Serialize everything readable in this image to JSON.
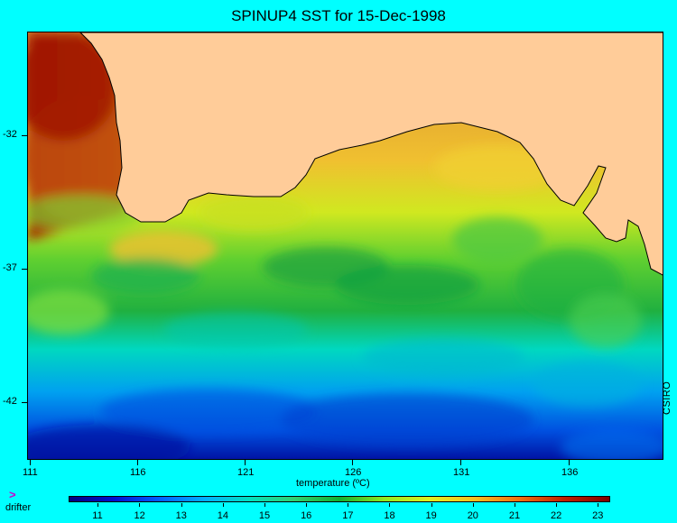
{
  "title": "SPINUP4 SST for 15-Dec-1998",
  "x_ticks": [
    "111",
    "116",
    "121",
    "126",
    "131",
    "136"
  ],
  "y_ticks": [
    "-32",
    "-37",
    "-42"
  ],
  "colorbar": {
    "title": "temperature (ºC)",
    "ticks": [
      "11",
      "12",
      "13",
      "14",
      "15",
      "16",
      "17",
      "18",
      "19",
      "20",
      "21",
      "22",
      "23"
    ],
    "min": 10.3,
    "max": 23.3,
    "colors": [
      "#00007f",
      "#0010d0",
      "#0060ff",
      "#00b0ff",
      "#00e0c0",
      "#30d070",
      "#10b030",
      "#90ea20",
      "#e0f020",
      "#f8c020",
      "#f07010",
      "#c02000",
      "#7f0000"
    ]
  },
  "legend": {
    "marker": ">",
    "label": "drifter"
  },
  "credit": "CSIRO",
  "land_color": "#ffcc99",
  "background_color": "#00ffff"
}
